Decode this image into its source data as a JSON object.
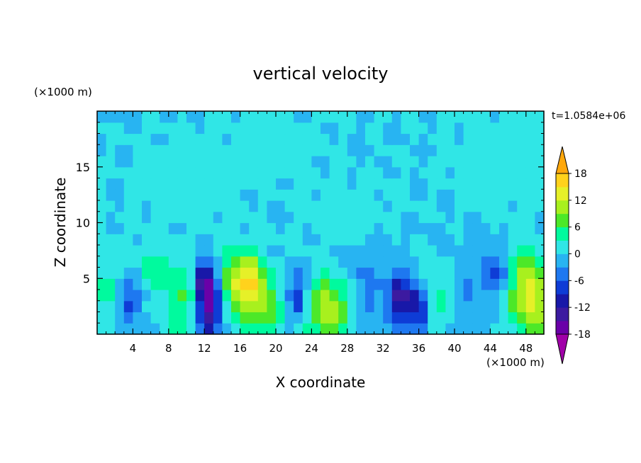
{
  "chart_data": {
    "type": "heatmap",
    "title": "vertical velocity",
    "xlabel": "X coordinate",
    "ylabel": "Z coordinate",
    "x_unit": "(×1000 m)",
    "y_unit": "(×1000 m)",
    "time_label": "t=1.0584e+06",
    "xlim": [
      0,
      50
    ],
    "ylim": [
      0,
      20
    ],
    "x_ticks": [
      "4",
      "8",
      "12",
      "16",
      "20",
      "24",
      "28",
      "32",
      "36",
      "40",
      "44",
      "48"
    ],
    "y_ticks": [
      "5",
      "10",
      "15"
    ],
    "colorbar": {
      "tick_labels": [
        "18",
        "12",
        "6",
        "0",
        "-6",
        "-12",
        "-18"
      ],
      "tick_values": [
        18,
        12,
        6,
        0,
        -6,
        -12,
        -18
      ],
      "range": [
        -21,
        21
      ],
      "step": 3,
      "colors": [
        "#a000a8",
        "#6a00a8",
        "#3c1aa0",
        "#1818a8",
        "#0e3cd6",
        "#1e78f0",
        "#28b4f2",
        "#30e6e6",
        "#00fa9e",
        "#4ce828",
        "#a8f01e",
        "#e6f028",
        "#ffd21c",
        "#ffa80c",
        "#ff8410",
        "#ff5a1c",
        "#ff2e22",
        "#f0a0a0"
      ]
    },
    "cells": {
      "nx": 50,
      "nz": 20,
      "features": [
        {
          "x": 12.5,
          "z": 2.5,
          "w": -17,
          "sx": 0.9,
          "sz": 2.0
        },
        {
          "x": 12.0,
          "z": 5.0,
          "w": -10,
          "sx": 0.8,
          "sz": 1.2
        },
        {
          "x": 9.5,
          "z": 3.0,
          "w": 6,
          "sx": 1.6,
          "sz": 2.0
        },
        {
          "x": 15.5,
          "z": 4.5,
          "w": 9,
          "sx": 1.2,
          "sz": 2.2
        },
        {
          "x": 18.5,
          "z": 3.0,
          "w": 10,
          "sx": 1.4,
          "sz": 2.2
        },
        {
          "x": 17.0,
          "z": 5.0,
          "w": 8,
          "sx": 1.0,
          "sz": 1.5
        },
        {
          "x": 22.5,
          "z": 3.5,
          "w": -9,
          "sx": 0.9,
          "sz": 1.5
        },
        {
          "x": 26.0,
          "z": 2.5,
          "w": 13,
          "sx": 1.8,
          "sz": 2.0
        },
        {
          "x": 30.0,
          "z": 4.0,
          "w": -4,
          "sx": 2.5,
          "sz": 2.5
        },
        {
          "x": 34.0,
          "z": 3.0,
          "w": -12,
          "sx": 0.9,
          "sz": 1.6
        },
        {
          "x": 36.0,
          "z": 2.5,
          "w": -11,
          "sx": 0.8,
          "sz": 1.5
        },
        {
          "x": 38.0,
          "z": 3.5,
          "w": 5,
          "sx": 1.5,
          "sz": 2.0
        },
        {
          "x": 41.0,
          "z": 4.0,
          "w": -3,
          "sx": 2.0,
          "sz": 2.5
        },
        {
          "x": 44.5,
          "z": 5.5,
          "w": -7,
          "sx": 1.0,
          "sz": 1.5
        },
        {
          "x": 48.5,
          "z": 3.5,
          "w": 14,
          "sx": 1.6,
          "sz": 2.5
        },
        {
          "x": 3.5,
          "z": 3.0,
          "w": -6,
          "sx": 1.2,
          "sz": 1.5
        },
        {
          "x": 1.0,
          "z": 4.0,
          "w": 5,
          "sx": 1.0,
          "sz": 2.0
        },
        {
          "x": 6.5,
          "z": 6.0,
          "w": 4,
          "sx": 1.5,
          "sz": 1.5
        },
        {
          "x": 28.0,
          "z": 11.0,
          "w": 2,
          "sx": 3.0,
          "sz": 2.0
        },
        {
          "x": 10.0,
          "z": 14.0,
          "w": 2,
          "sx": 4.0,
          "sz": 3.0
        },
        {
          "x": 45.0,
          "z": 16.0,
          "w": 2,
          "sx": 4.0,
          "sz": 3.0
        },
        {
          "x": 20.0,
          "z": 17.0,
          "w": 2,
          "sx": 3.0,
          "sz": 2.0
        }
      ]
    }
  }
}
